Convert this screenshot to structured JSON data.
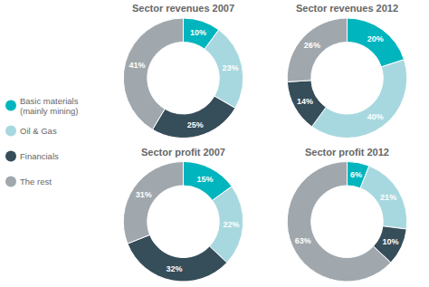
{
  "chart_data": [
    {
      "type": "pie",
      "title": "Sector revenues 2007",
      "categories": [
        "Basic materials (mainly mining)",
        "Oil & Gas",
        "Financials",
        "The rest"
      ],
      "values": [
        10,
        23,
        25,
        41
      ],
      "value_labels": [
        "10%",
        "23%",
        "25%",
        "41%"
      ],
      "colors": [
        "#00B5BD",
        "#A8D8DF",
        "#364D5A",
        "#A0A8AD"
      ],
      "data_labels": true,
      "legend": "left"
    },
    {
      "type": "pie",
      "title": "Sector revenues 2012",
      "categories": [
        "Basic materials (mainly mining)",
        "Oil & Gas",
        "Financials",
        "The rest"
      ],
      "values": [
        20,
        40,
        14,
        26
      ],
      "value_labels": [
        "20%",
        "40%",
        "14%",
        "26%"
      ],
      "colors": [
        "#00B5BD",
        "#A8D8DF",
        "#364D5A",
        "#A0A8AD"
      ],
      "data_labels": true
    },
    {
      "type": "pie",
      "title": "Sector profit 2007",
      "categories": [
        "Basic materials (mainly mining)",
        "Oil & Gas",
        "Financials",
        "The rest"
      ],
      "values": [
        15,
        22,
        32,
        31
      ],
      "value_labels": [
        "15%",
        "22%",
        "32%",
        "31%"
      ],
      "colors": [
        "#00B5BD",
        "#A8D8DF",
        "#364D5A",
        "#A0A8AD"
      ],
      "data_labels": true
    },
    {
      "type": "pie",
      "title": "Sector profit 2012",
      "categories": [
        "Basic materials (mainly mining)",
        "Oil & Gas",
        "Financials",
        "The rest"
      ],
      "values": [
        6,
        21,
        10,
        63
      ],
      "value_labels": [
        "6%",
        "21%",
        "10%",
        "63%"
      ],
      "colors": [
        "#00B5BD",
        "#A8D8DF",
        "#364D5A",
        "#A0A8AD"
      ],
      "data_labels": true
    }
  ]
}
